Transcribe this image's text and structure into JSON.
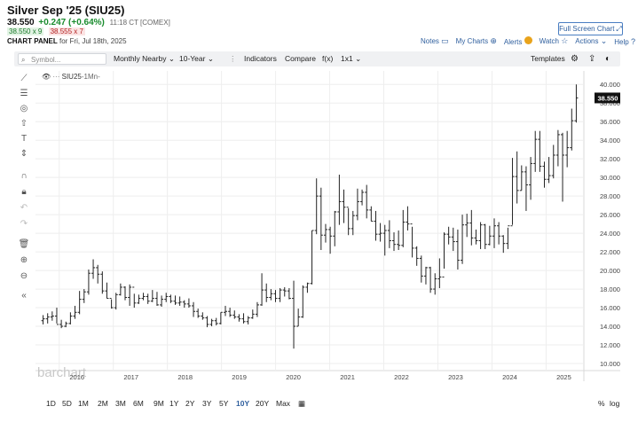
{
  "header": {
    "title": "Silver Sep '25 (SIU25)",
    "price": "38.550",
    "change": "+0.247 (+0.64%)",
    "time": "11:18 CT [COMEX]",
    "bid": "38.550 x 9",
    "ask": "38.555 x 7",
    "panel_label": "CHART PANEL",
    "panel_date": "for Fri, Jul 18th, 2025",
    "fullscreen_label": "Full Screen Chart"
  },
  "toplinks": {
    "notes": "Notes",
    "mycharts": "My Charts",
    "alerts": "Alerts",
    "watch": "Watch",
    "actions": "Actions",
    "help": "Help"
  },
  "toolbar": {
    "search_placeholder": "Symbol...",
    "period": "Monthly Nearby",
    "range": "10-Year",
    "indicators": "Indicators",
    "compare": "Compare",
    "fx": "f(x)",
    "layout": "1x1",
    "templates": "Templates"
  },
  "legend": {
    "symbol": "SIU25",
    "interval": "-1Mn-"
  },
  "watermark": "barchart",
  "bottombar": {
    "periods": [
      "1D",
      "5D",
      "1M",
      "2M",
      "3M",
      "6M",
      "9M",
      "1Y",
      "2Y",
      "3Y",
      "5Y",
      "10Y",
      "20Y",
      "Max"
    ],
    "active": "10Y",
    "percent": "%",
    "log": "log"
  },
  "chart_data": {
    "type": "ohlc",
    "title": "",
    "symbol": "SIU25",
    "interval": "Monthly",
    "last_price_label": "38.550",
    "ylim": [
      10,
      40
    ],
    "yticks": [
      10,
      12,
      14,
      16,
      18,
      20,
      22,
      24,
      26,
      28,
      30,
      32,
      34,
      36,
      38,
      40
    ],
    "ytick_labels": [
      "10.000",
      "12.000",
      "14.000",
      "16.000",
      "18.000",
      "20.000",
      "22.000",
      "24.000",
      "26.000",
      "28.000",
      "30.000",
      "32.000",
      "34.000",
      "36.000",
      "38.000",
      "40.000"
    ],
    "xtick_labels": [
      "2016",
      "2017",
      "2018",
      "2019",
      "2020",
      "2021",
      "2022",
      "2023",
      "2024",
      "2025"
    ],
    "x_start_year": 2015.66,
    "x_end_year": 2025.6,
    "ohlc_monthly": [
      [
        14.6,
        15.2,
        14.2,
        14.8
      ],
      [
        14.8,
        15.4,
        14.3,
        15.0
      ],
      [
        15.0,
        15.6,
        14.6,
        15.1
      ],
      [
        15.1,
        16.0,
        14.3,
        14.2
      ],
      [
        14.2,
        14.7,
        13.8,
        14.0
      ],
      [
        14.0,
        14.5,
        13.9,
        14.3
      ],
      [
        14.3,
        15.5,
        14.2,
        15.1
      ],
      [
        15.1,
        16.2,
        14.8,
        15.5
      ],
      [
        15.5,
        17.8,
        15.3,
        16.9
      ],
      [
        16.9,
        18.0,
        16.5,
        17.7
      ],
      [
        17.7,
        20.1,
        17.4,
        19.7
      ],
      [
        19.7,
        21.2,
        19.1,
        20.3
      ],
      [
        20.3,
        20.6,
        18.6,
        19.6
      ],
      [
        19.6,
        19.9,
        17.5,
        17.8
      ],
      [
        17.8,
        18.7,
        17.0,
        17.0
      ],
      [
        17.0,
        16.9,
        15.9,
        16.0
      ],
      [
        16.0,
        17.6,
        15.8,
        17.4
      ],
      [
        17.4,
        18.6,
        17.3,
        18.2
      ],
      [
        18.2,
        18.3,
        16.8,
        17.1
      ],
      [
        17.1,
        18.5,
        16.2,
        18.2
      ],
      [
        18.2,
        17.5,
        16.0,
        16.5
      ],
      [
        16.5,
        17.4,
        16.4,
        17.0
      ],
      [
        17.0,
        17.6,
        16.8,
        17.2
      ],
      [
        17.2,
        17.5,
        16.4,
        16.7
      ],
      [
        16.7,
        17.9,
        16.6,
        17.0
      ],
      [
        17.0,
        17.7,
        16.2,
        16.3
      ],
      [
        16.3,
        17.3,
        16.1,
        16.9
      ],
      [
        16.9,
        17.6,
        16.6,
        17.2
      ],
      [
        17.2,
        17.4,
        16.5,
        16.7
      ],
      [
        16.7,
        17.3,
        16.3,
        16.5
      ],
      [
        16.5,
        17.2,
        16.2,
        16.6
      ],
      [
        16.6,
        16.8,
        16.0,
        16.4
      ],
      [
        16.4,
        17.0,
        16.0,
        16.2
      ],
      [
        16.2,
        16.6,
        15.0,
        15.6
      ],
      [
        15.6,
        15.9,
        14.9,
        15.1
      ],
      [
        15.1,
        15.5,
        14.7,
        14.9
      ],
      [
        14.9,
        15.1,
        13.9,
        14.2
      ],
      [
        14.2,
        14.8,
        14.0,
        14.6
      ],
      [
        14.6,
        14.9,
        14.1,
        14.3
      ],
      [
        14.3,
        15.5,
        14.2,
        15.5
      ],
      [
        15.5,
        16.2,
        15.1,
        15.6
      ],
      [
        15.6,
        16.0,
        15.0,
        15.2
      ],
      [
        15.2,
        15.7,
        14.8,
        15.0
      ],
      [
        15.0,
        15.3,
        14.5,
        14.8
      ],
      [
        14.8,
        15.4,
        14.3,
        14.5
      ],
      [
        14.5,
        15.1,
        14.2,
        14.9
      ],
      [
        14.9,
        15.8,
        14.8,
        15.3
      ],
      [
        15.3,
        16.6,
        15.0,
        16.3
      ],
      [
        16.3,
        19.7,
        16.2,
        17.9
      ],
      [
        17.9,
        18.6,
        16.6,
        17.1
      ],
      [
        17.1,
        18.0,
        16.8,
        17.5
      ],
      [
        17.5,
        17.9,
        16.6,
        17.0
      ],
      [
        17.0,
        18.1,
        16.6,
        17.9
      ],
      [
        17.9,
        18.2,
        17.2,
        17.8
      ],
      [
        17.8,
        18.1,
        16.9,
        17.0
      ],
      [
        17.0,
        18.9,
        11.6,
        14.0
      ],
      [
        14.0,
        15.9,
        14.0,
        15.0
      ],
      [
        15.0,
        18.4,
        14.9,
        18.2
      ],
      [
        18.2,
        18.7,
        17.6,
        18.6
      ],
      [
        18.6,
        24.3,
        18.5,
        24.3
      ],
      [
        24.3,
        29.9,
        23.9,
        28.0
      ],
      [
        28.0,
        28.9,
        22.2,
        23.8
      ],
      [
        23.8,
        25.0,
        23.0,
        24.4
      ],
      [
        24.4,
        24.7,
        21.8,
        23.7
      ],
      [
        23.7,
        26.4,
        22.6,
        26.3
      ],
      [
        26.3,
        30.3,
        24.9,
        27.4
      ],
      [
        27.4,
        28.7,
        25.1,
        26.8
      ],
      [
        26.8,
        26.7,
        23.8,
        24.5
      ],
      [
        24.5,
        26.4,
        23.8,
        25.9
      ],
      [
        25.9,
        28.8,
        25.4,
        27.4
      ],
      [
        27.4,
        28.7,
        27.0,
        28.4
      ],
      [
        28.4,
        29.2,
        25.6,
        26.5
      ],
      [
        26.5,
        26.9,
        25.3,
        25.3
      ],
      [
        25.3,
        26.4,
        23.2,
        23.9
      ],
      [
        23.9,
        25.1,
        23.1,
        24.0
      ],
      [
        24.0,
        24.9,
        21.6,
        24.3
      ],
      [
        24.3,
        25.4,
        22.4,
        23.2
      ],
      [
        23.2,
        24.1,
        22.1,
        22.8
      ],
      [
        22.8,
        24.3,
        22.2,
        22.7
      ],
      [
        22.7,
        26.5,
        22.5,
        25.2
      ],
      [
        25.2,
        26.9,
        24.3,
        25.0
      ],
      [
        25.0,
        24.7,
        21.4,
        22.4
      ],
      [
        22.4,
        22.6,
        20.5,
        21.3
      ],
      [
        21.3,
        21.6,
        18.7,
        19.4
      ],
      [
        19.4,
        20.4,
        18.5,
        20.3
      ],
      [
        20.3,
        20.4,
        17.6,
        18.0
      ],
      [
        18.0,
        19.7,
        17.4,
        19.1
      ],
      [
        19.1,
        21.3,
        18.1,
        19.3
      ],
      [
        19.3,
        24.1,
        20.2,
        23.9
      ],
      [
        23.9,
        24.7,
        22.8,
        23.6
      ],
      [
        23.6,
        24.6,
        22.1,
        23.1
      ],
      [
        23.1,
        24.4,
        20.1,
        21.1
      ],
      [
        21.1,
        26.0,
        20.7,
        24.9
      ],
      [
        24.9,
        26.1,
        23.6,
        25.1
      ],
      [
        25.1,
        26.5,
        22.7,
        23.5
      ],
      [
        23.5,
        24.4,
        22.8,
        23.2
      ],
      [
        23.2,
        25.2,
        22.3,
        24.9
      ],
      [
        24.9,
        25.0,
        22.3,
        22.8
      ],
      [
        22.8,
        24.8,
        22.7,
        23.7
      ],
      [
        23.7,
        25.6,
        22.4,
        24.8
      ],
      [
        24.8,
        25.2,
        22.8,
        23.7
      ],
      [
        23.7,
        23.8,
        21.9,
        22.9
      ],
      [
        22.9,
        24.6,
        22.3,
        24.8
      ],
      [
        24.8,
        32.1,
        24.9,
        30.1
      ],
      [
        30.1,
        32.8,
        27.2,
        28.6
      ],
      [
        28.6,
        31.3,
        28.6,
        30.6
      ],
      [
        30.6,
        31.2,
        26.4,
        29.2
      ],
      [
        29.2,
        32.2,
        27.6,
        31.5
      ],
      [
        31.5,
        35.0,
        30.6,
        34.1
      ],
      [
        34.1,
        35.0,
        30.6,
        31.2
      ],
      [
        31.2,
        31.7,
        28.9,
        29.8
      ],
      [
        29.8,
        32.2,
        29.4,
        30.2
      ],
      [
        30.2,
        33.5,
        29.9,
        32.4
      ],
      [
        32.4,
        35.1,
        31.2,
        34.6
      ],
      [
        34.6,
        34.8,
        27.4,
        32.4
      ],
      [
        32.4,
        35.0,
        31.1,
        33.2
      ],
      [
        33.2,
        37.4,
        32.9,
        36.1
      ],
      [
        36.1,
        40.0,
        35.9,
        38.55
      ]
    ]
  }
}
